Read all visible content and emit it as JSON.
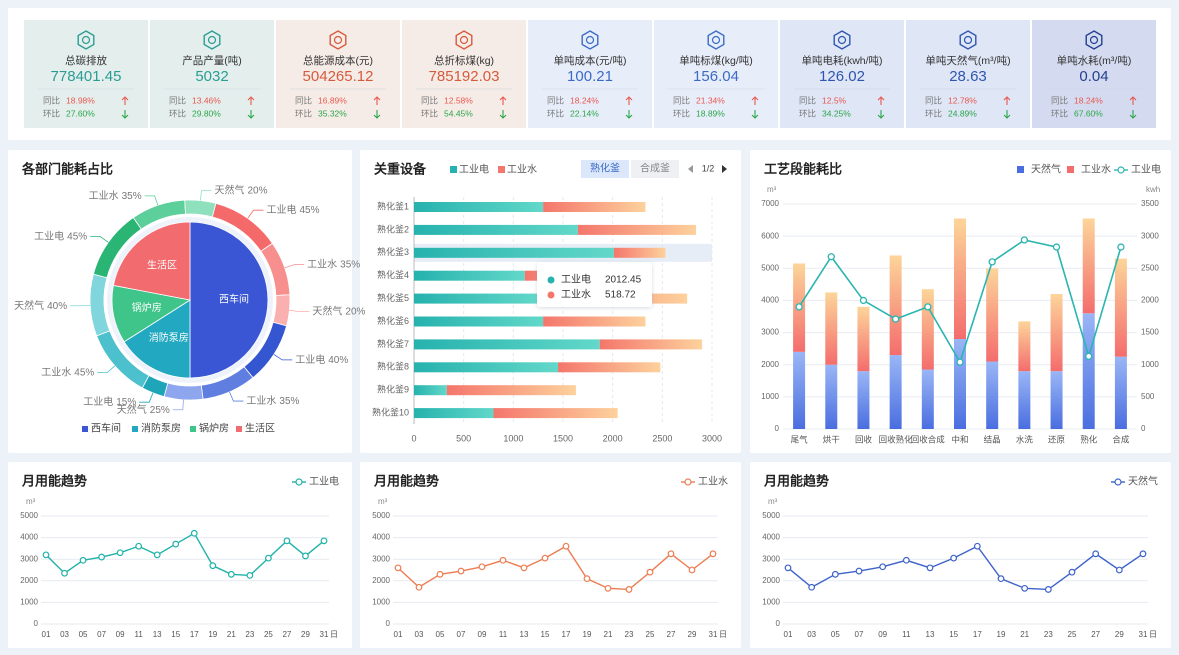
{
  "kpis": [
    {
      "title": "总碳排放",
      "value": 778401.45,
      "rows": [
        {
          "label": "同比",
          "value": "18.98%",
          "direction": "up"
        },
        {
          "label": "环比",
          "value": "27.60%",
          "direction": "down"
        }
      ]
    },
    {
      "title": "产品产量(吨)",
      "value": 5032,
      "rows": [
        {
          "label": "同比",
          "value": "13.46%",
          "direction": "up"
        },
        {
          "label": "环比",
          "value": "29.80%",
          "direction": "down"
        }
      ]
    },
    {
      "title": "总能源成本(元)",
      "value": 504265.12,
      "rows": [
        {
          "label": "同比",
          "value": "16.89%",
          "direction": "up"
        },
        {
          "label": "环比",
          "value": "35.32%",
          "direction": "down"
        }
      ]
    },
    {
      "title": "总折标煤(kg)",
      "value": 785192.03,
      "rows": [
        {
          "label": "同比",
          "value": "12.58%",
          "direction": "up"
        },
        {
          "label": "环比",
          "value": "54.45%",
          "direction": "down"
        }
      ]
    },
    {
      "title": "单吨成本(元/吨)",
      "value": 100.21,
      "rows": [
        {
          "label": "同比",
          "value": "18.24%",
          "direction": "up"
        },
        {
          "label": "环比",
          "value": "22.14%",
          "direction": "down"
        }
      ]
    },
    {
      "title": "单吨标煤(kg/吨)",
      "value": 156.04,
      "rows": [
        {
          "label": "同比",
          "value": "21.34%",
          "direction": "up"
        },
        {
          "label": "环比",
          "value": "18.89%",
          "direction": "down"
        }
      ]
    },
    {
      "title": "单吨电耗(kwh/吨)",
      "value": 126.02,
      "rows": [
        {
          "label": "同比",
          "value": "12.5%",
          "direction": "up"
        },
        {
          "label": "环比",
          "value": "34.25%",
          "direction": "down"
        }
      ]
    },
    {
      "title": "单吨天然气(m³/吨)",
      "value": 28.63,
      "rows": [
        {
          "label": "同比",
          "value": "12.78%",
          "direction": "up"
        },
        {
          "label": "环比",
          "value": "24.89%",
          "direction": "down"
        }
      ]
    },
    {
      "title": "单吨水耗(m³/吨)",
      "value": 0.04,
      "rows": [
        {
          "label": "同比",
          "value": "18.24%",
          "direction": "up"
        },
        {
          "label": "环比",
          "value": "67.60%",
          "direction": "down"
        }
      ]
    }
  ],
  "chart_data": [
    {
      "type": "pie",
      "title": "各部门能耗占比",
      "categories": [
        "西车间",
        "消防泵房",
        "锅炉房",
        "生活区"
      ],
      "values": [
        50,
        16,
        12,
        22
      ],
      "colors": [
        "#3a56d4",
        "#22a8c0",
        "#3fc489",
        "#f26b6f"
      ],
      "outer": {
        "labels": [
          "工业电",
          "工业水",
          "天然气",
          "工业电",
          "工业水",
          "天然气",
          "工业电",
          "工业水",
          "天然气",
          "工业电",
          "工业水",
          "天然气"
        ],
        "values": [
          45,
          35,
          20,
          40,
          35,
          25,
          15,
          45,
          40,
          45,
          35,
          20
        ],
        "value_labels": [
          "45%",
          "35%",
          "20%",
          "40%",
          "35%",
          "25%",
          "15%",
          "45%",
          "40%",
          "45%",
          "35%",
          "20%"
        ],
        "colors": [
          "#f46a6a",
          "#f88f8f",
          "#fbb0b0",
          "#3456d0",
          "#5f7ee0",
          "#8ea6ee",
          "#1ea6b8",
          "#4cc0cc",
          "#80d6dc",
          "#2ab575",
          "#5ccf9a",
          "#8fe0bd"
        ]
      }
    },
    {
      "type": "hbar",
      "title": "关重设备",
      "tabs": [
        "熟化釜",
        "合成釜"
      ],
      "pager": "1/2",
      "tooltip_index": 2,
      "categories": [
        "熟化釜1",
        "熟化釜2",
        "熟化釜3",
        "熟化釜4",
        "熟化釜5",
        "熟化釜6",
        "熟化釜7",
        "熟化釜8",
        "熟化釜9",
        "熟化釜10"
      ],
      "series": [
        {
          "name": "工业电",
          "color": "#26b2ae",
          "color_end": "#62d8c9",
          "values": [
            1300,
            1650,
            2012.45,
            1115,
            1250,
            1300,
            1870,
            1450,
            330,
            800
          ]
        },
        {
          "name": "工业水",
          "color": "#f4766c",
          "color_end": "#fdd19c",
          "values": [
            1030,
            1190,
            518.72,
            1275,
            1500,
            1030,
            1030,
            1030,
            1300,
            1250
          ]
        }
      ],
      "xlim": [
        0,
        3000
      ],
      "xticks": [
        0,
        500,
        1000,
        1500,
        2000,
        2500,
        3000
      ],
      "grid": true
    },
    {
      "type": "combo",
      "title": "工艺段能耗比",
      "ylabel": "m³",
      "y2label": "kwh",
      "categories": [
        "尾气",
        "烘干",
        "回收",
        "回收熟化",
        "回收合成",
        "中和",
        "结晶",
        "水洗",
        "还原",
        "熟化",
        "合成"
      ],
      "series": [
        {
          "name": "天然气",
          "type": "bar",
          "color": "#4a6ee0",
          "color_end": "#9ab6f6",
          "values": [
            2400,
            2000,
            1800,
            2300,
            1850,
            2800,
            2100,
            1800,
            1800,
            3600,
            2250
          ]
        },
        {
          "name": "工业水",
          "type": "bar",
          "color": "#f46d6d",
          "color_end": "#fcd59a",
          "values": [
            2750,
            2250,
            2000,
            3100,
            2500,
            3750,
            2900,
            1550,
            2400,
            2950,
            3050
          ]
        },
        {
          "name": "工业电",
          "type": "line",
          "axis": "y2",
          "color": "#2bb5b0",
          "values": [
            1900,
            2680,
            2000,
            1710,
            1900,
            1040,
            2600,
            2940,
            2830,
            1130,
            2830
          ]
        }
      ],
      "ylim": [
        0,
        7000
      ],
      "yticks": [
        0,
        1000,
        2000,
        3000,
        4000,
        5000,
        6000,
        7000
      ],
      "y2lim": [
        0,
        3500
      ],
      "y2ticks": [
        0,
        500,
        1000,
        1500,
        2000,
        2500,
        3000,
        3500
      ],
      "grid": true
    },
    {
      "type": "line",
      "title": "月用能趋势",
      "ylabel": "m³",
      "xlabel": "日",
      "categories": [
        "01",
        "03",
        "05",
        "07",
        "09",
        "11",
        "13",
        "15",
        "17",
        "19",
        "21",
        "23",
        "25",
        "27",
        "29",
        "31"
      ],
      "series": [
        {
          "name": "工业电",
          "color": "#1fb2a9",
          "values": [
            3200,
            2350,
            2950,
            3100,
            3300,
            3600,
            3200,
            3700,
            4200,
            2700,
            2300,
            2250,
            3050,
            3850,
            3150,
            3850
          ]
        }
      ],
      "ylim": [
        0,
        5000
      ],
      "yticks": [
        0,
        1000,
        2000,
        3000,
        4000,
        5000
      ],
      "grid": true
    },
    {
      "type": "line",
      "title": "月用能趋势",
      "ylabel": "m³",
      "xlabel": "日",
      "categories": [
        "01",
        "03",
        "05",
        "07",
        "09",
        "11",
        "13",
        "15",
        "17",
        "19",
        "21",
        "23",
        "25",
        "27",
        "29",
        "31"
      ],
      "series": [
        {
          "name": "工业水",
          "color": "#ec7d52",
          "values": [
            2600,
            1700,
            2300,
            2450,
            2650,
            2950,
            2600,
            3050,
            3600,
            2100,
            1650,
            1600,
            2400,
            3250,
            2500,
            3250
          ]
        }
      ],
      "ylim": [
        0,
        5000
      ],
      "yticks": [
        0,
        1000,
        2000,
        3000,
        4000,
        5000
      ],
      "grid": true
    },
    {
      "type": "line",
      "title": "月用能趋势",
      "ylabel": "m³",
      "xlabel": "日",
      "categories": [
        "01",
        "03",
        "05",
        "07",
        "09",
        "11",
        "13",
        "15",
        "17",
        "19",
        "21",
        "23",
        "25",
        "27",
        "29",
        "31"
      ],
      "series": [
        {
          "name": "天然气",
          "color": "#3e63c9",
          "values": [
            2600,
            1700,
            2300,
            2450,
            2650,
            2950,
            2600,
            3050,
            3600,
            2100,
            1650,
            1600,
            2400,
            3250,
            2500,
            3250
          ]
        }
      ],
      "ylim": [
        0,
        5000
      ],
      "yticks": [
        0,
        1000,
        2000,
        3000,
        4000,
        5000
      ],
      "grid": true
    }
  ]
}
